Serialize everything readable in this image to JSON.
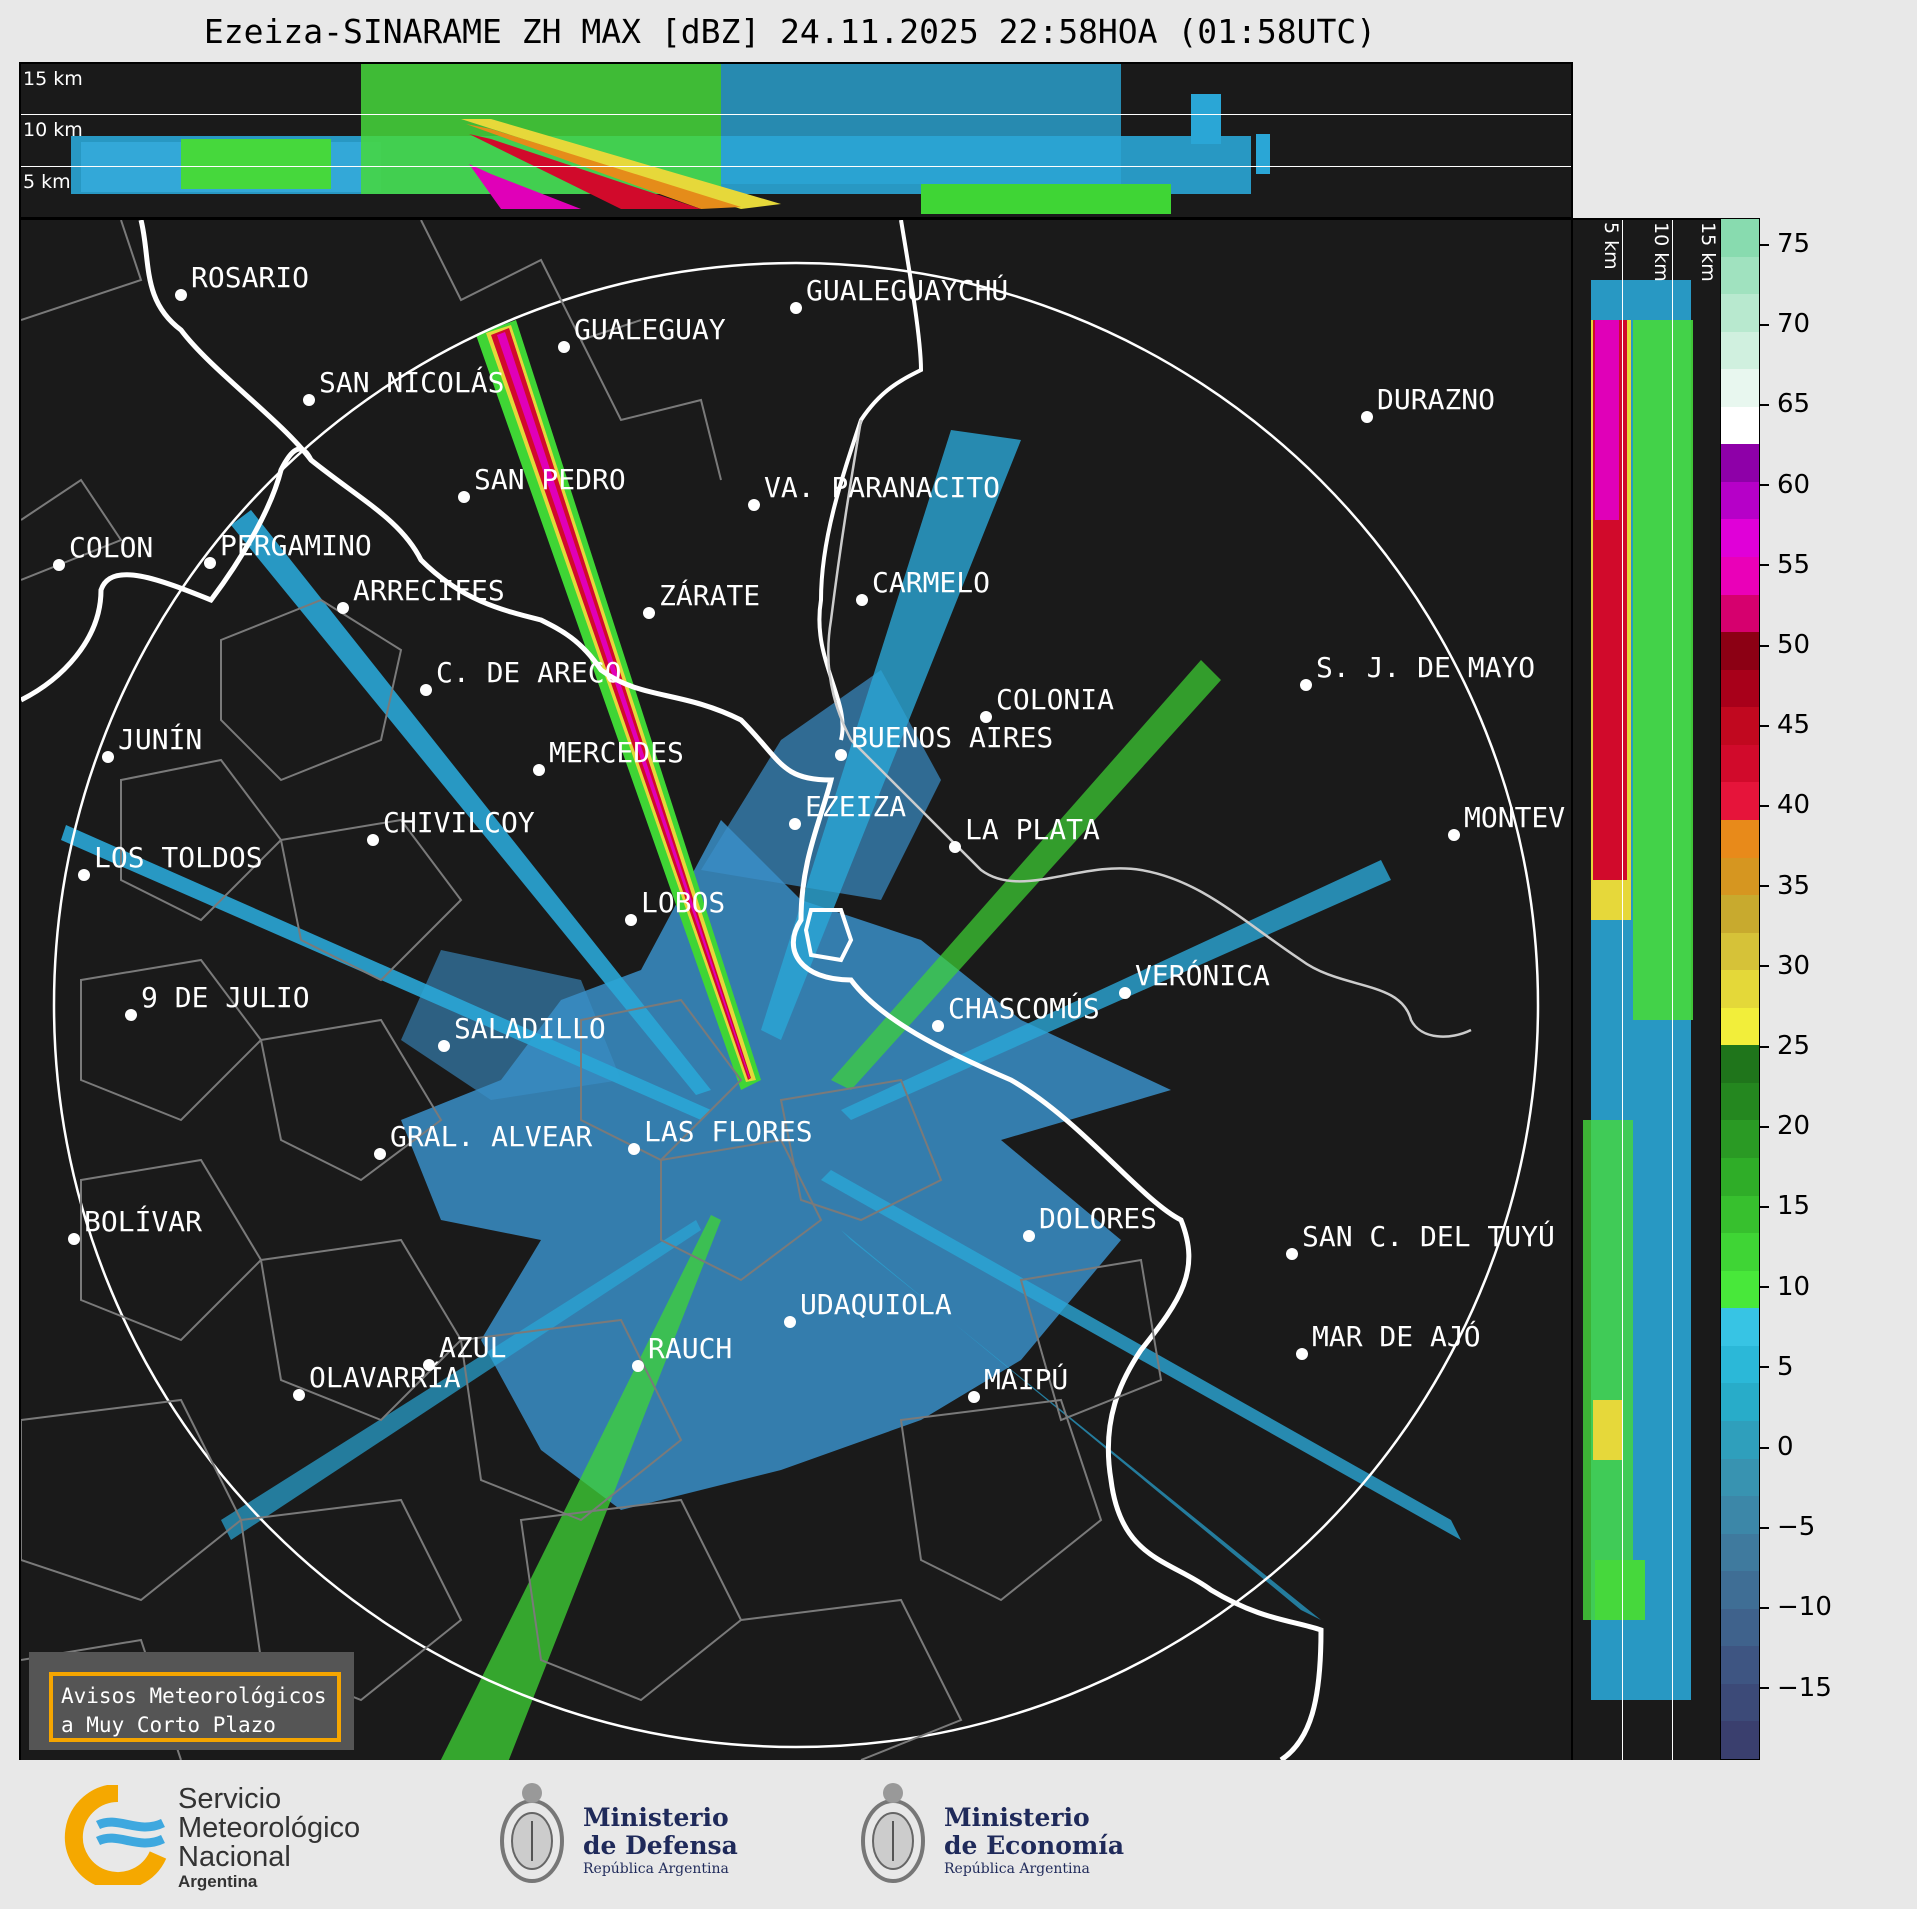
{
  "title": "Ezeiza-SINARAME ZH MAX [dBZ] 24.11.2025 22:58HOA (01:58UTC)",
  "top_panel": {
    "altitude_labels": [
      "15 km",
      "10 km",
      "5 km"
    ]
  },
  "side_panel": {
    "altitude_labels": [
      "5 km",
      "10 km",
      "15 km"
    ]
  },
  "colorbar": {
    "unit": "dBZ",
    "ticks": [
      "75",
      "70",
      "65",
      "60",
      "55",
      "50",
      "45",
      "40",
      "35",
      "30",
      "25",
      "20",
      "15",
      "10",
      "5",
      "0",
      "−5",
      "−10",
      "−15"
    ],
    "colors": [
      "#3a3f6e",
      "#3c4a78",
      "#3e5582",
      "#3f628c",
      "#3f6e95",
      "#3f7a9e",
      "#3c87a8",
      "#3893b1",
      "#2f9fbc",
      "#28acc9",
      "#2bb8d8",
      "#37c4e4",
      "#48e83a",
      "#3fd535",
      "#37c02e",
      "#2fad28",
      "#2a9a24",
      "#24871f",
      "#1f751b",
      "#f2ee3a",
      "#e4d839",
      "#d6c238",
      "#c8aa2e",
      "#d69620",
      "#e88a1a",
      "#e6143a",
      "#d10a2b",
      "#c1081f",
      "#a8001a",
      "#8c0014",
      "#d6006e",
      "#ea00b8",
      "#e000d8",
      "#b600c8",
      "#8e00a8",
      "#ffffff",
      "#e8f7ef",
      "#d0f0df",
      "#b8e9cf",
      "#a0e2bf",
      "#88dbaf"
    ]
  },
  "cities": [
    {
      "name": "ROSARIO"
    },
    {
      "name": "GUALEGUAYCHÚ"
    },
    {
      "name": "GUALEGUAY"
    },
    {
      "name": "SAN NICOLÁS"
    },
    {
      "name": "DURAZNO"
    },
    {
      "name": "SAN PEDRO"
    },
    {
      "name": "VA. PARANACITO"
    },
    {
      "name": "COLON"
    },
    {
      "name": "PERGAMINO"
    },
    {
      "name": "CARMELO"
    },
    {
      "name": "ARRECIFES"
    },
    {
      "name": "ZÁRATE"
    },
    {
      "name": "S. J. DE MAYO"
    },
    {
      "name": "C. DE ARECO"
    },
    {
      "name": "COLONIA"
    },
    {
      "name": "JUNÍN"
    },
    {
      "name": "BUENOS AIRES"
    },
    {
      "name": "MERCEDES"
    },
    {
      "name": "EZEIZA"
    },
    {
      "name": "MONTEV"
    },
    {
      "name": "CHIVILCOY"
    },
    {
      "name": "LA PLATA"
    },
    {
      "name": "LOS TOLDOS"
    },
    {
      "name": "LOBOS"
    },
    {
      "name": "VERÓNICA"
    },
    {
      "name": "9 DE JULIO"
    },
    {
      "name": "CHASCOMÚS"
    },
    {
      "name": "SALADILLO"
    },
    {
      "name": "GRAL. ALVEAR"
    },
    {
      "name": "LAS FLORES"
    },
    {
      "name": "BOLÍVAR"
    },
    {
      "name": "DOLORES"
    },
    {
      "name": "SAN C. DEL TUYÚ"
    },
    {
      "name": "UDAQUIOLA"
    },
    {
      "name": "MAR DE AJÓ"
    },
    {
      "name": "AZUL"
    },
    {
      "name": "RAUCH"
    },
    {
      "name": "OLAVARRÍA"
    },
    {
      "name": "MAIPÚ"
    }
  ],
  "legend": {
    "line1": "Avisos Meteorológicos",
    "line2": "a Muy Corto Plazo"
  },
  "footer": {
    "smn": {
      "line1": "Servicio",
      "line2": "Meteorológico",
      "line3": "Nacional",
      "line4": "Argentina"
    },
    "defensa": {
      "line1": "Ministerio",
      "line2": "de Defensa",
      "line3": "República Argentina"
    },
    "economia": {
      "line1": "Ministerio",
      "line2": "de Economía",
      "line3": "República Argentina"
    }
  }
}
